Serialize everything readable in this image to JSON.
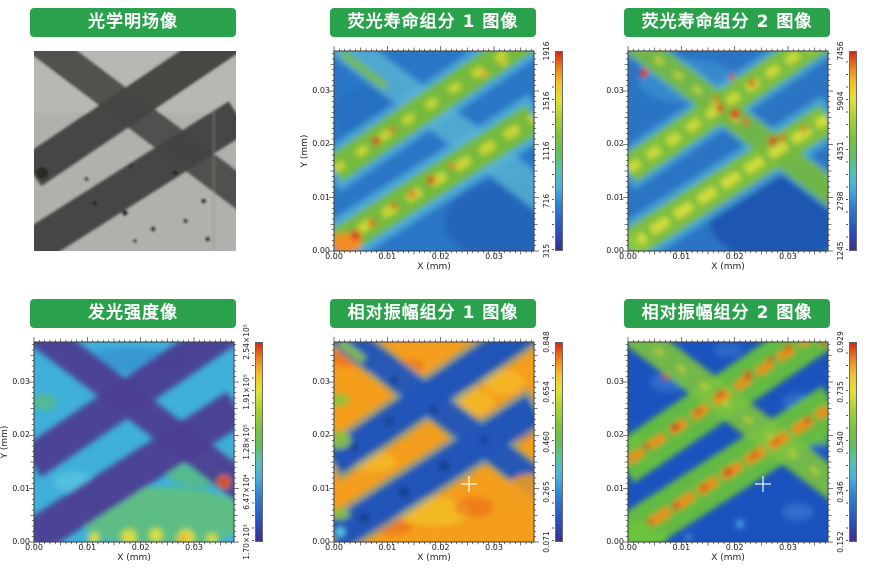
{
  "colors": {
    "page_bg": "#ffffff",
    "title_bar_bg": "#2aa24b",
    "title_text": "#ffffff",
    "axis_text": "#222222",
    "crosshair": "#ffffff",
    "colorbar_palette": [
      "#3a2f90",
      "#2b50c0",
      "#49b0dc",
      "#62bd62",
      "#aad232",
      "#e2e236",
      "#f2c22a",
      "#ef8c1c",
      "#d42414"
    ]
  },
  "chart_data": [
    {
      "type": "image",
      "title": "光学明场像",
      "description": "灰度光学明场显微图像：浅灰色背景上有三条深灰色纤维条带，两条平行条带自左下向右上延伸，一条自左上向右下与之交叉，图中散布少量黑色颗粒斑点"
    },
    {
      "type": "heatmap",
      "title": "荧光寿命组分 1 图像",
      "xlabel": "X (mm)",
      "ylabel": "Y (mm)",
      "xticks": [
        "0.00",
        "0.01",
        "0.02",
        "0.03"
      ],
      "yticks": [
        "0.00",
        "0.01",
        "0.02",
        "0.03"
      ],
      "x_range_mm": [
        0,
        0.0375
      ],
      "y_range_mm": [
        0,
        0.0375
      ],
      "colorbar_ticks": [
        "315",
        "716",
        "1116",
        "1516",
        "1916"
      ],
      "colorbar_range": [
        315,
        1916
      ],
      "palette": "rainbow blue-cyan-green-yellow-red",
      "pattern": "蓝色背景；交叉纤维条带呈绿色带黄色核心；左下角为橙红色热点区，条带沿线散布红色热点"
    },
    {
      "type": "heatmap",
      "title": "荧光寿命组分 2 图像",
      "xlabel": "X (mm)",
      "ylabel": "",
      "xticks": [
        "0.00",
        "0.01",
        "0.02",
        "0.03"
      ],
      "yticks": [
        "0.00",
        "0.01",
        "0.02",
        "0.03"
      ],
      "x_range_mm": [
        0,
        0.0375
      ],
      "y_range_mm": [
        0,
        0.0375
      ],
      "colorbar_ticks": [
        "1245",
        "2798",
        "4351",
        "5904",
        "7456"
      ],
      "colorbar_range": [
        1245,
        7456
      ],
      "palette": "rainbow blue-cyan-green-yellow-red",
      "pattern": "蓝色背景右下偏深；纤维条带呈绿色带黄色核心，条带上散布红色热点；左下角绿色团块"
    },
    {
      "type": "heatmap",
      "title": "发光强度像",
      "xlabel": "X (mm)",
      "ylabel": "Y (mm)",
      "xticks": [
        "0.00",
        "0.01",
        "0.02",
        "0.03"
      ],
      "yticks": [
        "0.00",
        "0.01",
        "0.02",
        "0.03"
      ],
      "x_range_mm": [
        0,
        0.0375
      ],
      "y_range_mm": [
        0,
        0.0375
      ],
      "colorbar_ticks": [
        "1.70×10³",
        "6.47×10⁴",
        "1.28×10⁵",
        "1.91×10⁵",
        "2.54×10⁵"
      ],
      "colorbar_range": [
        1700,
        254000
      ],
      "palette": "rainbow blue-cyan-green-yellow-red",
      "pattern": "青蓝色背景；纤维条带呈深紫色（低强度）；下部和右侧为绿色高强度区并有黄色斑块，右中部有一个红色亮点"
    },
    {
      "type": "heatmap",
      "title": "相对振幅组分 1 图像",
      "xlabel": "X (mm)",
      "ylabel": "",
      "xticks": [
        "0.00",
        "0.01",
        "0.02",
        "0.03"
      ],
      "yticks": [
        "0.00",
        "0.01",
        "0.02",
        "0.03"
      ],
      "x_range_mm": [
        0,
        0.0375
      ],
      "y_range_mm": [
        0,
        0.0375
      ],
      "colorbar_ticks": [
        "0.071",
        "0.265",
        "0.460",
        "0.654",
        "0.848"
      ],
      "colorbar_range": [
        0.071,
        0.848
      ],
      "palette": "rainbow blue-cyan-green-yellow-red",
      "pattern": "橙黄色高值背景带红色斑驳；纤维条带呈深蓝色低值；左缘有绿色斑块，左下角青色小点",
      "marker": {
        "symbol": "+",
        "x_mm": 0.025,
        "y_mm": 0.011,
        "color": "#ffffff"
      }
    },
    {
      "type": "heatmap",
      "title": "相对振幅组分 2 图像",
      "xlabel": "X (mm)",
      "ylabel": "",
      "xticks": [
        "0.00",
        "0.01",
        "0.02",
        "0.03"
      ],
      "yticks": [
        "0.00",
        "0.01",
        "0.02",
        "0.03"
      ],
      "x_range_mm": [
        0,
        0.0375
      ],
      "y_range_mm": [
        0,
        0.0375
      ],
      "colorbar_ticks": [
        "0.152",
        "0.346",
        "0.540",
        "0.735",
        "0.929"
      ],
      "colorbar_range": [
        0.152,
        0.929
      ],
      "palette": "rainbow blue-cyan-green-yellow-red",
      "pattern": "深蓝色低值背景；纤维条带呈绿色边缘、橙红色核心的高值带；左下角绿色团块",
      "marker": {
        "symbol": "+",
        "x_mm": 0.025,
        "y_mm": 0.011,
        "color": "#ffffff"
      }
    }
  ]
}
